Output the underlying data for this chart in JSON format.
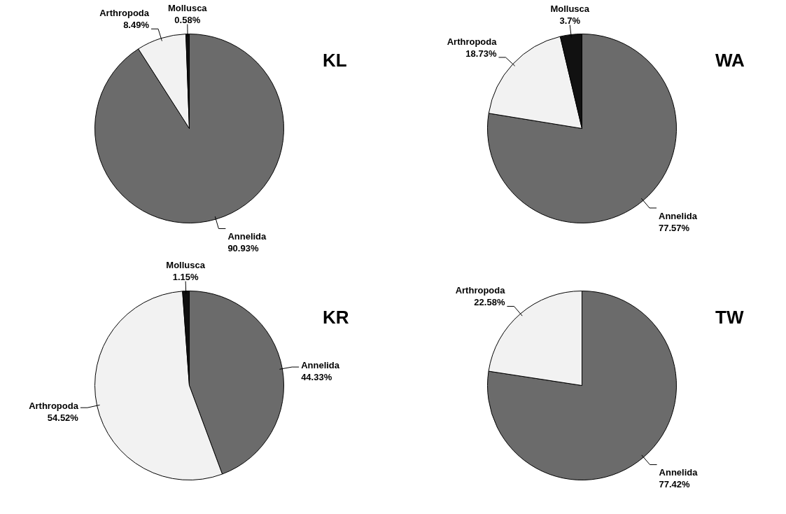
{
  "chart_data": [
    {
      "type": "pie",
      "title": "KL",
      "categories": [
        "Annelida",
        "Arthropoda",
        "Mollusca"
      ],
      "values": [
        90.93,
        8.49,
        0.58
      ],
      "colors": [
        "#6b6b6b",
        "#f2f2f2",
        "#111111"
      ],
      "value_labels": [
        "90.93%",
        "8.49%",
        "0.58%"
      ],
      "legend": false
    },
    {
      "type": "pie",
      "title": "WA",
      "categories": [
        "Annelida",
        "Arthropoda",
        "Mollusca"
      ],
      "values": [
        77.57,
        18.73,
        3.7
      ],
      "colors": [
        "#6b6b6b",
        "#f2f2f2",
        "#111111"
      ],
      "value_labels": [
        "77.57%",
        "18.73%",
        "3.7%"
      ],
      "legend": false
    },
    {
      "type": "pie",
      "title": "KR",
      "categories": [
        "Annelida",
        "Arthropoda",
        "Mollusca"
      ],
      "values": [
        44.33,
        54.52,
        1.15
      ],
      "colors": [
        "#6b6b6b",
        "#f2f2f2",
        "#111111"
      ],
      "value_labels": [
        "44.33%",
        "54.52%",
        "1.15%"
      ],
      "legend": false
    },
    {
      "type": "pie",
      "title": "TW",
      "categories": [
        "Annelida",
        "Arthropoda"
      ],
      "values": [
        77.42,
        22.58
      ],
      "colors": [
        "#6b6b6b",
        "#f2f2f2"
      ],
      "value_labels": [
        "77.42%",
        "22.58%"
      ],
      "legend": false
    }
  ]
}
